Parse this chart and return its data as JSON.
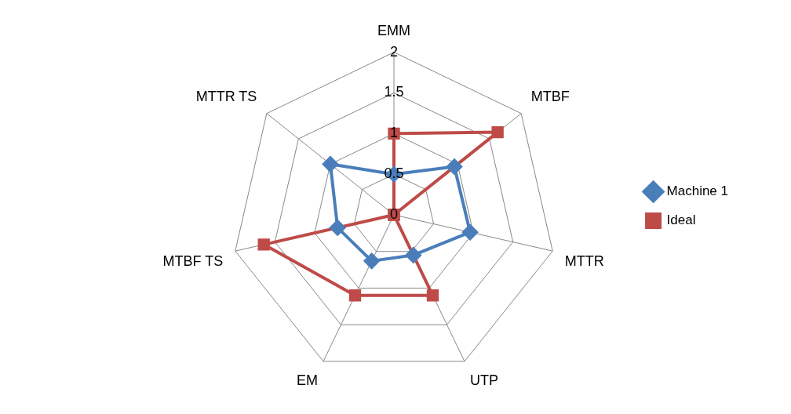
{
  "chart_data": {
    "type": "radar",
    "categories": [
      "EMM",
      "MTBF",
      "MTTR",
      "UTP",
      "EM",
      "MTBF TS",
      "MTTR TS"
    ],
    "series": [
      {
        "name": "Machine 1",
        "color": "#4a7ebb",
        "marker": "diamond",
        "values": [
          0.5,
          0.95,
          0.96,
          0.55,
          0.63,
          0.71,
          1.0
        ]
      },
      {
        "name": "Ideal",
        "color": "#be4b48",
        "marker": "square",
        "values": [
          1,
          1.63,
          0,
          1.1,
          1.1,
          1.64,
          0
        ]
      }
    ],
    "ylim": [
      0,
      2
    ],
    "yticks": [
      0,
      0.5,
      1,
      1.5,
      2
    ],
    "grid": true,
    "legend": "right"
  }
}
